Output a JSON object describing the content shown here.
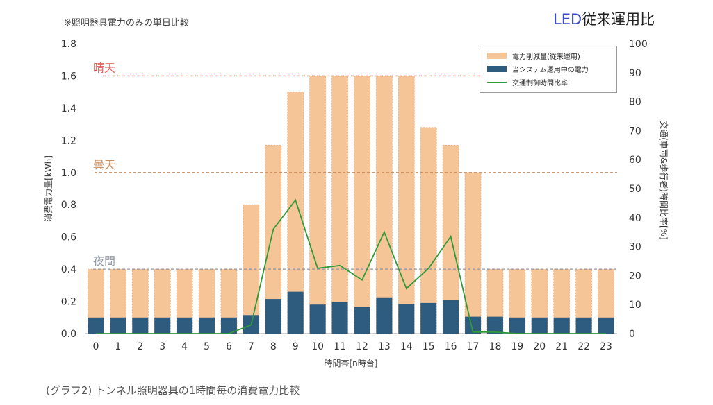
{
  "header": {
    "note": "※照明器具電力のみの単日比較",
    "brand_prefix": "LED",
    "brand_suffix": "従来運用比"
  },
  "caption": "(グラフ2) トンネル照明器具の1時間毎の消費電力比較",
  "colors": {
    "reduction": "#f6c597",
    "current": "#2e5c7e",
    "traffic": "#2f9a3a",
    "sunny": "#e05a55",
    "cloudy": "#c88b5c",
    "night": "#8f96a3"
  },
  "chart_data": {
    "type": "bar",
    "xlabel": "時間帯[n時台]",
    "ylabel": "消費電力量[kWh]",
    "y2label": "交通(車両&歩行者)時間比率[%]",
    "categories": [
      "0",
      "1",
      "2",
      "3",
      "4",
      "5",
      "6",
      "7",
      "8",
      "9",
      "10",
      "11",
      "12",
      "13",
      "14",
      "15",
      "16",
      "17",
      "18",
      "19",
      "20",
      "21",
      "22",
      "23"
    ],
    "ylim": [
      0,
      1.8
    ],
    "yticks": [
      "0.0",
      "0.2",
      "0.4",
      "0.6",
      "0.8",
      "1.0",
      "1.2",
      "1.4",
      "1.6",
      "1.8"
    ],
    "y2lim": [
      0,
      100
    ],
    "y2ticks": [
      "0",
      "10",
      "20",
      "30",
      "40",
      "50",
      "60",
      "70",
      "80",
      "90",
      "100"
    ],
    "series": [
      {
        "name": "電力削減量(従来運用)",
        "kind": "bar-total",
        "values": [
          0.4,
          0.4,
          0.4,
          0.4,
          0.4,
          0.4,
          0.4,
          0.8,
          1.17,
          1.5,
          1.6,
          1.6,
          1.6,
          1.6,
          1.6,
          1.28,
          1.17,
          1.0,
          0.4,
          0.4,
          0.4,
          0.4,
          0.4,
          0.4
        ]
      },
      {
        "name": "当システム運用中の電力",
        "kind": "bar",
        "values": [
          0.1,
          0.1,
          0.1,
          0.1,
          0.1,
          0.1,
          0.1,
          0.115,
          0.215,
          0.26,
          0.18,
          0.195,
          0.165,
          0.225,
          0.185,
          0.19,
          0.21,
          0.105,
          0.105,
          0.1,
          0.1,
          0.1,
          0.1,
          0.1
        ]
      },
      {
        "name": "交通制御時間比率",
        "kind": "line",
        "axis": "right",
        "values": [
          0,
          0,
          0,
          0,
          0,
          0,
          0,
          3,
          36,
          46,
          22.5,
          23.5,
          18.5,
          35,
          15.5,
          22.5,
          33.5,
          0.5,
          0.5,
          0,
          0,
          0,
          0,
          0
        ]
      }
    ],
    "reference_lines": [
      {
        "label": "晴天",
        "value": 1.6
      },
      {
        "label": "曇天",
        "value": 1.0
      },
      {
        "label": "夜間",
        "value": 0.4
      }
    ],
    "grid": false,
    "legend": "top-right"
  }
}
